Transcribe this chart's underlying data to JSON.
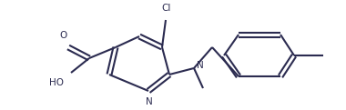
{
  "bg_color": "#ffffff",
  "line_color": "#2b2b50",
  "text_color": "#2b2b50",
  "lw": 1.5,
  "figsize": [
    3.8,
    1.21
  ],
  "dpi": 100,
  "xlim": [
    0,
    380
  ],
  "ylim": [
    0,
    121
  ]
}
